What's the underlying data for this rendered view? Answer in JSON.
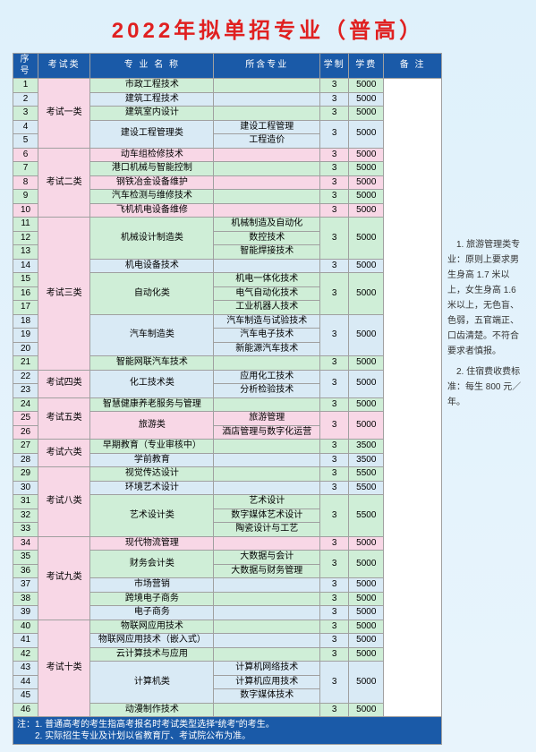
{
  "title": "2022年拟单招专业（普高）",
  "columns": [
    "序号",
    "考试类",
    "专 业 名 称",
    "所含专业",
    "学制",
    "学费",
    "备 注"
  ],
  "side_notes": [
    "　1. 旅游管理类专业：原则上要求男生身高 1.7 米以上，女生身高 1.6 米以上，无色盲、色弱，五官端正、口齿清楚。不符合要求者慎报。",
    "　2. 住宿费收费标准：每生 800 元／年。"
  ],
  "footnotes": [
    "注：1. 普通高考的考生指高考报名时考试类型选择“统考”的考生。",
    "　　2. 实际招生专业及计划以省教育厅、考试院公布为准。"
  ],
  "colors": {
    "header_bg": "#1a5aa8",
    "header_fg": "#ffffff",
    "title_color": "#e02020",
    "green": "#cfeed7",
    "pink": "#f8d7e6",
    "blue": "#d9eaf5",
    "border": "#a0a0a0",
    "page_bg_top": "#dff1fb",
    "page_bg_bottom": "#e8f4fc"
  },
  "rows": [
    {
      "xh": "1",
      "lei": "考试一类",
      "lei_rs": 5,
      "lei_cls": "c-pink",
      "zy": "市政工程技术",
      "zy_rs": 1,
      "zy_cls": "c-green",
      "hz": "",
      "hz_rs": 1,
      "hz_cls": "c-green",
      "xz": "3",
      "xz_rs": 1,
      "xz_cls": "c-green",
      "xf": "5000",
      "xf_rs": 1,
      "xf_cls": "c-green"
    },
    {
      "xh": "2",
      "zy": "建筑工程技术",
      "zy_rs": 1,
      "zy_cls": "c-blue",
      "hz": "",
      "hz_rs": 1,
      "hz_cls": "c-blue",
      "xz": "3",
      "xz_rs": 1,
      "xz_cls": "c-blue",
      "xf": "5000",
      "xf_rs": 1,
      "xf_cls": "c-blue"
    },
    {
      "xh": "3",
      "zy": "建筑室内设计",
      "zy_rs": 1,
      "zy_cls": "c-green",
      "hz": "",
      "hz_rs": 1,
      "hz_cls": "c-green",
      "xz": "3",
      "xz_rs": 1,
      "xz_cls": "c-green",
      "xf": "5000",
      "xf_rs": 1,
      "xf_cls": "c-green"
    },
    {
      "xh": "4",
      "zy": "建设工程管理类",
      "zy_rs": 2,
      "zy_cls": "c-blue",
      "hz": "建设工程管理",
      "hz_rs": 1,
      "hz_cls": "c-blue",
      "xz": "3",
      "xz_rs": 2,
      "xz_cls": "c-blue",
      "xf": "5000",
      "xf_rs": 2,
      "xf_cls": "c-blue"
    },
    {
      "xh": "5",
      "hz": "工程造价",
      "hz_rs": 1,
      "hz_cls": "c-blue"
    },
    {
      "xh": "6",
      "lei": "考试二类",
      "lei_rs": 5,
      "lei_cls": "c-pink",
      "zy": "动车组检修技术",
      "zy_rs": 1,
      "zy_cls": "c-pink",
      "hz": "",
      "hz_rs": 1,
      "hz_cls": "c-pink",
      "xz": "3",
      "xz_rs": 1,
      "xz_cls": "c-pink",
      "xf": "5000",
      "xf_rs": 1,
      "xf_cls": "c-pink"
    },
    {
      "xh": "7",
      "zy": "港口机械与智能控制",
      "zy_rs": 1,
      "zy_cls": "c-green",
      "hz": "",
      "hz_rs": 1,
      "hz_cls": "c-green",
      "xz": "3",
      "xz_rs": 1,
      "xz_cls": "c-green",
      "xf": "5000",
      "xf_rs": 1,
      "xf_cls": "c-green"
    },
    {
      "xh": "8",
      "zy": "钢铁冶金设备维护",
      "zy_rs": 1,
      "zy_cls": "c-pink",
      "hz": "",
      "hz_rs": 1,
      "hz_cls": "c-pink",
      "xz": "3",
      "xz_rs": 1,
      "xz_cls": "c-pink",
      "xf": "5000",
      "xf_rs": 1,
      "xf_cls": "c-pink"
    },
    {
      "xh": "9",
      "zy": "汽车检测与维修技术",
      "zy_rs": 1,
      "zy_cls": "c-green",
      "hz": "",
      "hz_rs": 1,
      "hz_cls": "c-green",
      "xz": "3",
      "xz_rs": 1,
      "xz_cls": "c-green",
      "xf": "5000",
      "xf_rs": 1,
      "xf_cls": "c-green"
    },
    {
      "xh": "10",
      "zy": "飞机机电设备维修",
      "zy_rs": 1,
      "zy_cls": "c-pink",
      "hz": "",
      "hz_rs": 1,
      "hz_cls": "c-pink",
      "xz": "3",
      "xz_rs": 1,
      "xz_cls": "c-pink",
      "xf": "5000",
      "xf_rs": 1,
      "xf_cls": "c-pink"
    },
    {
      "xh": "11",
      "lei": "考试三类",
      "lei_rs": 11,
      "lei_cls": "c-pink",
      "zy": "机械设计制造类",
      "zy_rs": 3,
      "zy_cls": "c-green",
      "hz": "机械制造及自动化",
      "hz_rs": 1,
      "hz_cls": "c-green",
      "xz": "3",
      "xz_rs": 3,
      "xz_cls": "c-green",
      "xf": "5000",
      "xf_rs": 3,
      "xf_cls": "c-green"
    },
    {
      "xh": "12",
      "hz": "数控技术",
      "hz_rs": 1,
      "hz_cls": "c-green"
    },
    {
      "xh": "13",
      "hz": "智能焊接技术",
      "hz_rs": 1,
      "hz_cls": "c-green"
    },
    {
      "xh": "14",
      "zy": "机电设备技术",
      "zy_rs": 1,
      "zy_cls": "c-blue",
      "hz": "",
      "hz_rs": 1,
      "hz_cls": "c-blue",
      "xz": "3",
      "xz_rs": 1,
      "xz_cls": "c-blue",
      "xf": "5000",
      "xf_rs": 1,
      "xf_cls": "c-blue"
    },
    {
      "xh": "15",
      "zy": "自动化类",
      "zy_rs": 3,
      "zy_cls": "c-green",
      "hz": "机电一体化技术",
      "hz_rs": 1,
      "hz_cls": "c-green",
      "xz": "3",
      "xz_rs": 3,
      "xz_cls": "c-green",
      "xf": "5000",
      "xf_rs": 3,
      "xf_cls": "c-green"
    },
    {
      "xh": "16",
      "hz": "电气自动化技术",
      "hz_rs": 1,
      "hz_cls": "c-green"
    },
    {
      "xh": "17",
      "hz": "工业机器人技术",
      "hz_rs": 1,
      "hz_cls": "c-green"
    },
    {
      "xh": "18",
      "zy": "汽车制造类",
      "zy_rs": 3,
      "zy_cls": "c-blue",
      "hz": "汽车制造与试验技术",
      "hz_rs": 1,
      "hz_cls": "c-blue",
      "xz": "3",
      "xz_rs": 3,
      "xz_cls": "c-blue",
      "xf": "5000",
      "xf_rs": 3,
      "xf_cls": "c-blue"
    },
    {
      "xh": "19",
      "hz": "汽车电子技术",
      "hz_rs": 1,
      "hz_cls": "c-blue"
    },
    {
      "xh": "20",
      "hz": "新能源汽车技术",
      "hz_rs": 1,
      "hz_cls": "c-blue"
    },
    {
      "xh": "21",
      "zy": "智能网联汽车技术",
      "zy_rs": 1,
      "zy_cls": "c-green",
      "hz": "",
      "hz_rs": 1,
      "hz_cls": "c-green",
      "xz": "3",
      "xz_rs": 1,
      "xz_cls": "c-green",
      "xf": "5000",
      "xf_rs": 1,
      "xf_cls": "c-green"
    },
    {
      "xh": "22",
      "lei": "考试四类",
      "lei_rs": 2,
      "lei_cls": "c-pink",
      "zy": "化工技术类",
      "zy_rs": 2,
      "zy_cls": "c-blue",
      "hz": "应用化工技术",
      "hz_rs": 1,
      "hz_cls": "c-blue",
      "xz": "3",
      "xz_rs": 2,
      "xz_cls": "c-blue",
      "xf": "5000",
      "xf_rs": 2,
      "xf_cls": "c-blue"
    },
    {
      "xh": "23",
      "hz": "分析检验技术",
      "hz_rs": 1,
      "hz_cls": "c-blue"
    },
    {
      "xh": "24",
      "lei": "考试五类",
      "lei_rs": 3,
      "lei_cls": "c-pink",
      "zy": "智慧健康养老服务与管理",
      "zy_rs": 1,
      "zy_cls": "c-green",
      "hz": "",
      "hz_rs": 1,
      "hz_cls": "c-green",
      "xz": "3",
      "xz_rs": 1,
      "xz_cls": "c-green",
      "xf": "5000",
      "xf_rs": 1,
      "xf_cls": "c-green"
    },
    {
      "xh": "25",
      "zy": "旅游类",
      "zy_rs": 2,
      "zy_cls": "c-pink",
      "hz": "旅游管理",
      "hz_rs": 1,
      "hz_cls": "c-pink",
      "xz": "3",
      "xz_rs": 2,
      "xz_cls": "c-pink",
      "xf": "5000",
      "xf_rs": 2,
      "xf_cls": "c-pink"
    },
    {
      "xh": "26",
      "hz": "酒店管理与数字化运营",
      "hz_rs": 1,
      "hz_cls": "c-pink"
    },
    {
      "xh": "27",
      "lei": "考试六类",
      "lei_rs": 2,
      "lei_cls": "c-pink",
      "zy": "早期教育（专业审核中）",
      "zy_rs": 1,
      "zy_cls": "c-green",
      "hz": "",
      "hz_rs": 1,
      "hz_cls": "c-green",
      "xz": "3",
      "xz_rs": 1,
      "xz_cls": "c-green",
      "xf": "3500",
      "xf_rs": 1,
      "xf_cls": "c-green"
    },
    {
      "xh": "28",
      "zy": "学前教育",
      "zy_rs": 1,
      "zy_cls": "c-blue",
      "hz": "",
      "hz_rs": 1,
      "hz_cls": "c-blue",
      "xz": "3",
      "xz_rs": 1,
      "xz_cls": "c-blue",
      "xf": "3500",
      "xf_rs": 1,
      "xf_cls": "c-blue"
    },
    {
      "xh": "29",
      "lei": "考试八类",
      "lei_rs": 5,
      "lei_cls": "c-pink",
      "zy": "视觉传达设计",
      "zy_rs": 1,
      "zy_cls": "c-green",
      "hz": "",
      "hz_rs": 1,
      "hz_cls": "c-green",
      "xz": "3",
      "xz_rs": 1,
      "xz_cls": "c-green",
      "xf": "5500",
      "xf_rs": 1,
      "xf_cls": "c-green"
    },
    {
      "xh": "30",
      "zy": "环境艺术设计",
      "zy_rs": 1,
      "zy_cls": "c-blue",
      "hz": "",
      "hz_rs": 1,
      "hz_cls": "c-blue",
      "xz": "3",
      "xz_rs": 1,
      "xz_cls": "c-blue",
      "xf": "5500",
      "xf_rs": 1,
      "xf_cls": "c-blue"
    },
    {
      "xh": "31",
      "zy": "艺术设计类",
      "zy_rs": 3,
      "zy_cls": "c-green",
      "hz": "艺术设计",
      "hz_rs": 1,
      "hz_cls": "c-green",
      "xz": "3",
      "xz_rs": 3,
      "xz_cls": "c-green",
      "xf": "5500",
      "xf_rs": 3,
      "xf_cls": "c-green"
    },
    {
      "xh": "32",
      "hz": "数字媒体艺术设计",
      "hz_rs": 1,
      "hz_cls": "c-green"
    },
    {
      "xh": "33",
      "hz": "陶瓷设计与工艺",
      "hz_rs": 1,
      "hz_cls": "c-green"
    },
    {
      "xh": "34",
      "lei": "考试九类",
      "lei_rs": 6,
      "lei_cls": "c-pink",
      "zy": "现代物流管理",
      "zy_rs": 1,
      "zy_cls": "c-pink",
      "hz": "",
      "hz_rs": 1,
      "hz_cls": "c-pink",
      "xz": "3",
      "xz_rs": 1,
      "xz_cls": "c-pink",
      "xf": "5000",
      "xf_rs": 1,
      "xf_cls": "c-pink"
    },
    {
      "xh": "35",
      "zy": "财务会计类",
      "zy_rs": 2,
      "zy_cls": "c-green",
      "hz": "大数据与会计",
      "hz_rs": 1,
      "hz_cls": "c-green",
      "xz": "3",
      "xz_rs": 2,
      "xz_cls": "c-green",
      "xf": "5000",
      "xf_rs": 2,
      "xf_cls": "c-green"
    },
    {
      "xh": "36",
      "hz": "大数据与财务管理",
      "hz_rs": 1,
      "hz_cls": "c-green"
    },
    {
      "xh": "37",
      "zy": "市场营销",
      "zy_rs": 1,
      "zy_cls": "c-blue",
      "hz": "",
      "hz_rs": 1,
      "hz_cls": "c-blue",
      "xz": "3",
      "xz_rs": 1,
      "xz_cls": "c-blue",
      "xf": "5000",
      "xf_rs": 1,
      "xf_cls": "c-blue"
    },
    {
      "xh": "38",
      "zy": "跨境电子商务",
      "zy_rs": 1,
      "zy_cls": "c-green",
      "hz": "",
      "hz_rs": 1,
      "hz_cls": "c-green",
      "xz": "3",
      "xz_rs": 1,
      "xz_cls": "c-green",
      "xf": "5000",
      "xf_rs": 1,
      "xf_cls": "c-green"
    },
    {
      "xh": "39",
      "zy": "电子商务",
      "zy_rs": 1,
      "zy_cls": "c-blue",
      "hz": "",
      "hz_rs": 1,
      "hz_cls": "c-blue",
      "xz": "3",
      "xz_rs": 1,
      "xz_cls": "c-blue",
      "xf": "5000",
      "xf_rs": 1,
      "xf_cls": "c-blue"
    },
    {
      "xh": "40",
      "lei": "考试十类",
      "lei_rs": 7,
      "lei_cls": "c-pink",
      "zy": "物联网应用技术",
      "zy_rs": 1,
      "zy_cls": "c-green",
      "hz": "",
      "hz_rs": 1,
      "hz_cls": "c-green",
      "xz": "3",
      "xz_rs": 1,
      "xz_cls": "c-green",
      "xf": "5000",
      "xf_rs": 1,
      "xf_cls": "c-green"
    },
    {
      "xh": "41",
      "zy": "物联网应用技术（嵌入式）",
      "zy_rs": 1,
      "zy_cls": "c-blue",
      "hz": "",
      "hz_rs": 1,
      "hz_cls": "c-blue",
      "xz": "3",
      "xz_rs": 1,
      "xz_cls": "c-blue",
      "xf": "5000",
      "xf_rs": 1,
      "xf_cls": "c-blue"
    },
    {
      "xh": "42",
      "zy": "云计算技术与应用",
      "zy_rs": 1,
      "zy_cls": "c-green",
      "hz": "",
      "hz_rs": 1,
      "hz_cls": "c-green",
      "xz": "3",
      "xz_rs": 1,
      "xz_cls": "c-green",
      "xf": "5000",
      "xf_rs": 1,
      "xf_cls": "c-green"
    },
    {
      "xh": "43",
      "zy": "计算机类",
      "zy_rs": 3,
      "zy_cls": "c-blue",
      "hz": "计算机网络技术",
      "hz_rs": 1,
      "hz_cls": "c-blue",
      "xz": "3",
      "xz_rs": 3,
      "xz_cls": "c-blue",
      "xf": "5000",
      "xf_rs": 3,
      "xf_cls": "c-blue"
    },
    {
      "xh": "44",
      "hz": "计算机应用技术",
      "hz_rs": 1,
      "hz_cls": "c-blue"
    },
    {
      "xh": "45",
      "hz": "数字媒体技术",
      "hz_rs": 1,
      "hz_cls": "c-blue"
    },
    {
      "xh": "46",
      "zy": "动漫制作技术",
      "zy_rs": 1,
      "zy_cls": "c-green",
      "hz": "",
      "hz_rs": 1,
      "hz_cls": "c-green",
      "xz": "3",
      "xz_rs": 1,
      "xz_cls": "c-green",
      "xf": "5000",
      "xf_rs": 1,
      "xf_cls": "c-green"
    }
  ]
}
